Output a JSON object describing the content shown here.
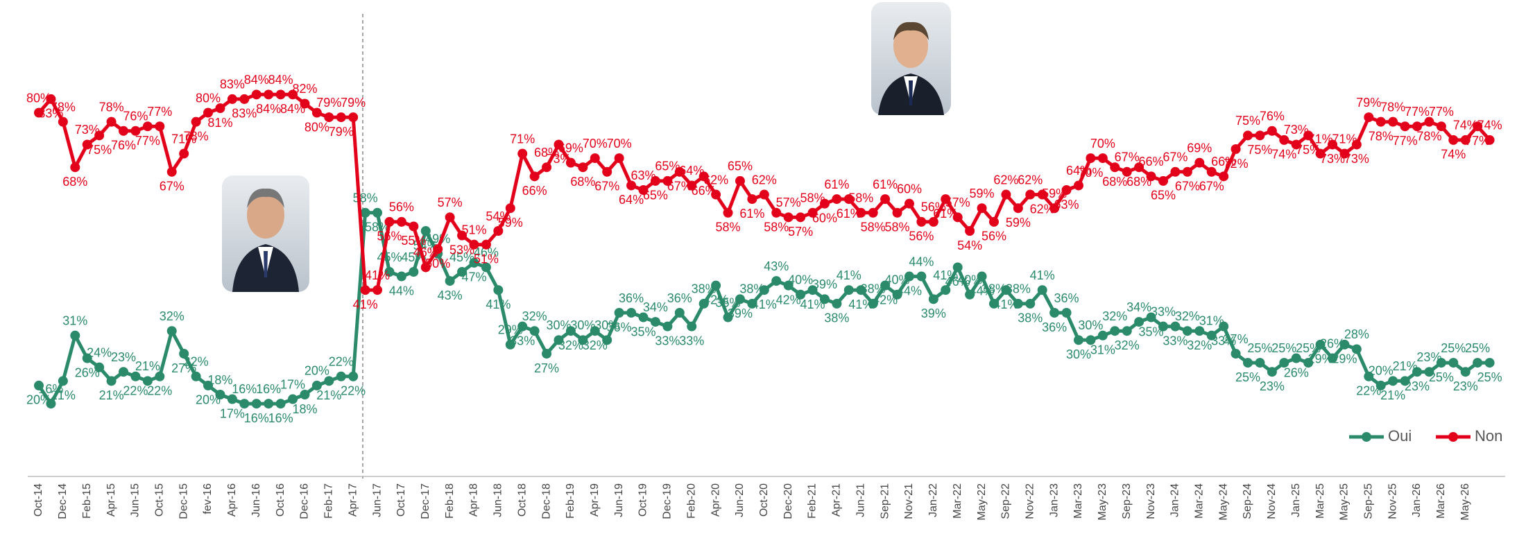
{
  "chart_data": {
    "type": "line",
    "categories": [
      "Oct-14",
      null,
      "Dec-14",
      null,
      "Feb-15",
      null,
      "Apr-15",
      null,
      "Jun-15",
      null,
      "Oct-15",
      null,
      "Dec-15",
      null,
      "fev-16",
      null,
      "Apr-16",
      null,
      "Jun-16",
      null,
      "Oct-16",
      null,
      "Dec-16",
      null,
      "Feb-17",
      null,
      "Apr-17",
      null,
      "Jun-17",
      null,
      "Oct-17",
      null,
      "Dec-17",
      null,
      "Feb-18",
      null,
      "Apr-18",
      null,
      "Jun-18",
      null,
      "Oct-18",
      null,
      "Dec-18",
      null,
      "Feb-19",
      null,
      "Apr-19",
      null,
      "Jun-19",
      null,
      "Oct-19",
      null,
      "Dec-19",
      null,
      "Feb-20",
      null,
      "Apr-20",
      null,
      "Jun-20",
      null,
      "Oct-20",
      null,
      "Dec-20",
      null,
      "Feb-21",
      null,
      "Apr-21",
      null,
      "Jun-21",
      null,
      "Sep-21",
      null,
      "Nov-21",
      null,
      "Jan-22",
      null,
      "Mar-22",
      null,
      "May-22",
      null,
      "Sep-22",
      null,
      "Nov-22",
      null,
      "Jan-23",
      null,
      "Mar-23",
      null,
      "May-23",
      null,
      "Sep-23",
      null,
      "Nov-23",
      null,
      "Jan-24",
      null,
      "Mar-24",
      null,
      "May-24",
      null,
      "Sep-24",
      null,
      "Nov-24",
      null,
      "Jan-25",
      null,
      "Mar-25",
      null,
      "May-25",
      null,
      "Sep-25",
      null,
      "Nov-25",
      null,
      "Jan-26",
      null,
      "Mar-26",
      null,
      "May-26",
      null,
      null
    ],
    "series": [
      {
        "name": "Oui",
        "color": "#2a8a6a",
        "values": [
          20,
          16,
          21,
          31,
          26,
          24,
          21,
          23,
          22,
          21,
          22,
          32,
          27,
          22,
          20,
          18,
          17,
          16,
          16,
          16,
          16,
          17,
          18,
          20,
          21,
          22,
          22,
          58,
          58,
          45,
          44,
          45,
          54,
          49,
          43,
          45,
          47,
          46,
          41,
          29,
          33,
          32,
          27,
          30,
          32,
          30,
          32,
          30,
          36,
          36,
          35,
          34,
          33,
          36,
          33,
          38,
          42,
          35,
          39,
          38,
          41,
          43,
          42,
          40,
          41,
          39,
          38,
          41,
          41,
          38,
          42,
          40,
          44,
          44,
          39,
          41,
          46,
          40,
          44,
          38,
          41,
          38,
          38,
          41,
          36,
          36,
          30,
          30,
          31,
          32,
          32,
          34,
          35,
          33,
          33,
          32,
          32,
          31,
          33,
          27,
          25,
          25,
          23,
          25,
          26,
          25,
          29,
          26,
          29,
          28,
          22,
          20,
          21,
          21,
          23,
          23,
          25,
          25,
          23,
          25,
          25
        ],
        "value_labels": [
          "20%",
          "16%",
          "21%",
          "31%",
          "26%",
          "24%",
          "21%",
          "23%",
          "22%",
          "21%",
          "22%",
          "32%",
          "27%",
          "22%",
          "20%",
          "18%",
          "17%",
          "16%",
          "16%",
          "16%",
          "16%",
          "17%",
          "18%",
          "20%",
          "21%",
          "22%",
          "22%",
          "58%",
          "58%",
          "45%",
          "44%",
          "45%",
          "54%",
          "49%",
          "43%",
          "45%",
          "47%",
          "46%",
          "41%",
          "29%",
          "33%",
          "32%",
          "27%",
          "30%",
          "32%",
          "30%",
          "32%",
          "30%",
          "36%",
          "36%",
          "35%",
          "34%",
          "33%",
          "36%",
          "33%",
          "38%",
          "42%",
          "35%",
          "39%",
          "38%",
          "41%",
          "43%",
          "42%",
          "40%",
          "41%",
          "39%",
          "38%",
          "41%",
          "41%",
          "38%",
          "42%",
          "40%",
          "44%",
          "44%",
          "39%",
          "41%",
          "46%",
          "40%",
          "44%",
          "38%",
          "41%",
          "38%",
          "38%",
          "41%",
          "36%",
          "36%",
          "30%",
          "30%",
          "31%",
          "32%",
          "32%",
          "34%",
          "35%",
          "33%",
          "33%",
          "32%",
          "32%",
          "31%",
          "33%",
          "27%",
          "25%",
          "25%",
          "23%",
          "25%",
          "26%",
          "25%",
          "29%",
          "26%",
          "29%",
          "28%",
          "22%",
          "20%",
          "21%",
          "21%",
          "23%",
          "23%",
          "25%",
          "25%",
          "23%",
          "25%",
          "25%"
        ]
      },
      {
        "name": "Non",
        "color": "#e3001b",
        "values": [
          80,
          83,
          78,
          68,
          73,
          75,
          78,
          76,
          76,
          77,
          77,
          67,
          71,
          78,
          80,
          81,
          83,
          83,
          84,
          84,
          84,
          84,
          82,
          80,
          79,
          79,
          79,
          41,
          41,
          56,
          56,
          55,
          46,
          50,
          57,
          53,
          51,
          51,
          54,
          59,
          71,
          66,
          68,
          73,
          69,
          68,
          70,
          67,
          70,
          64,
          63,
          65,
          65,
          67,
          64,
          66,
          62,
          58,
          65,
          61,
          62,
          58,
          57,
          57,
          58,
          60,
          61,
          61,
          58,
          58,
          61,
          58,
          60,
          56,
          56,
          61,
          57,
          54,
          59,
          56,
          62,
          59,
          62,
          62,
          59,
          63,
          64,
          70,
          70,
          68,
          67,
          68,
          66,
          65,
          67,
          67,
          69,
          67,
          66,
          72,
          75,
          75,
          76,
          74,
          73,
          75,
          71,
          73,
          71,
          73,
          79,
          78,
          78,
          77,
          77,
          78,
          77,
          74,
          74,
          77,
          74
        ],
        "value_labels": [
          "80%",
          "83%",
          "78%",
          "68%",
          "73%",
          "75%",
          "78%",
          "76%",
          "76%",
          "77%",
          "77%",
          "67%",
          "71%",
          "78%",
          "80%",
          "81%",
          "83%",
          "83%",
          "84%",
          "84%",
          "84%",
          "84%",
          "82%",
          "80%",
          "79%",
          "79%",
          "79%",
          "41%",
          "41%",
          "56%",
          "56%",
          "55%",
          "46%",
          "50%",
          "57%",
          "53%",
          "51%",
          "51%",
          "54%",
          "59%",
          "71%",
          "66%",
          "68%",
          "73%",
          "69%",
          "68%",
          "70%",
          "67%",
          "70%",
          "64%",
          "63%",
          "65%",
          "65%",
          "67%",
          "64%",
          "66%",
          "62%",
          "58%",
          "65%",
          "61%",
          "62%",
          "58%",
          "57%",
          "57%",
          "58%",
          "60%",
          "61%",
          "61%",
          "58%",
          "58%",
          "61%",
          "58%",
          "60%",
          "56%",
          "56%",
          "61%",
          "57%",
          "54%",
          "59%",
          "56%",
          "62%",
          "59%",
          "62%",
          "62%",
          "59%",
          "63%",
          "64%",
          "70%",
          "70%",
          "68%",
          "67%",
          "68%",
          "66%",
          "65%",
          "67%",
          "67%",
          "69%",
          "67%",
          "66%",
          "72%",
          "75%",
          "75%",
          "76%",
          "74%",
          "73%",
          "75%",
          "71%",
          "73%",
          "71%",
          "73%",
          "79%",
          "78%",
          "78%",
          "77%",
          "77%",
          "78%",
          "77%",
          "74%",
          "74%",
          "77%",
          "74%"
        ]
      }
    ],
    "ylim": [
      0,
      90
    ],
    "legend": "lower-right"
  }
}
